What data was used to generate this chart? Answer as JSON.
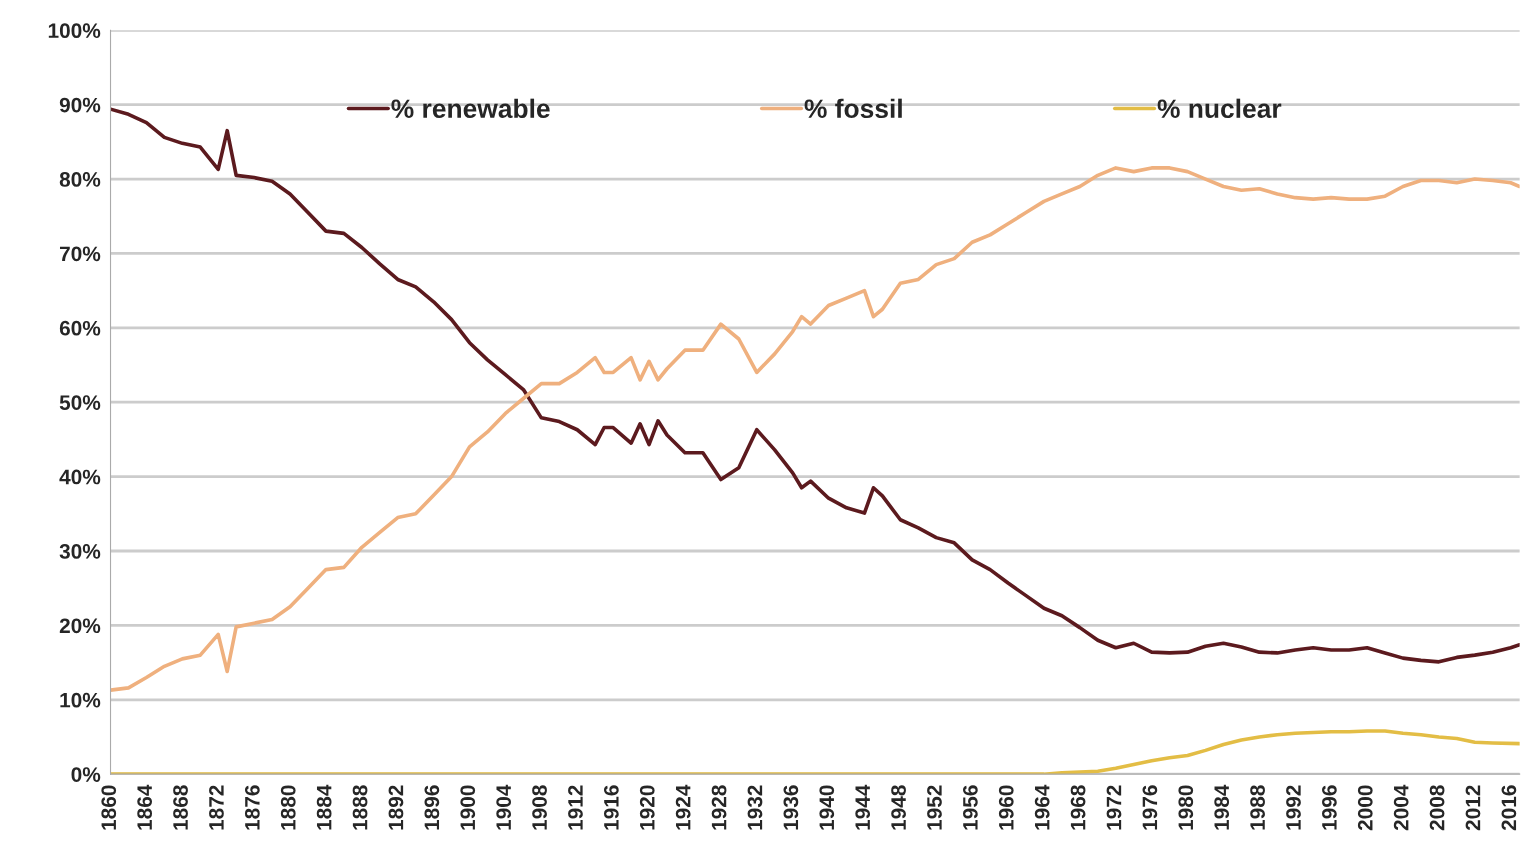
{
  "chart_data": {
    "type": "line",
    "xlim": [
      1860,
      2017
    ],
    "xticks": [
      1860,
      1864,
      1868,
      1872,
      1876,
      1880,
      1884,
      1888,
      1892,
      1896,
      1900,
      1904,
      1908,
      1912,
      1916,
      1920,
      1924,
      1928,
      1932,
      1936,
      1940,
      1944,
      1948,
      1952,
      1956,
      1960,
      1964,
      1968,
      1972,
      1976,
      1980,
      1984,
      1988,
      1992,
      1996,
      2000,
      2004,
      2008,
      2012,
      2016
    ],
    "ylim": [
      0,
      100
    ],
    "yticks": [
      {
        "value": 0,
        "label": "0%"
      },
      {
        "value": 10,
        "label": "10%"
      },
      {
        "value": 20,
        "label": "20%"
      },
      {
        "value": 30,
        "label": "30%"
      },
      {
        "value": 40,
        "label": "40%"
      },
      {
        "value": 50,
        "label": "50%"
      },
      {
        "value": 60,
        "label": "60%"
      },
      {
        "value": 70,
        "label": "70%"
      },
      {
        "value": 80,
        "label": "80%"
      },
      {
        "value": 90,
        "label": "90%"
      },
      {
        "value": 100,
        "label": "100%"
      }
    ],
    "grid": "y",
    "legend": "top",
    "marker": "none",
    "line_style": "solid",
    "series": [
      {
        "name": "% renewable",
        "color": "#5c1a1e",
        "x": [
          1860,
          1862,
          1864,
          1866,
          1868,
          1870,
          1872,
          1873,
          1874,
          1876,
          1878,
          1880,
          1882,
          1884,
          1886,
          1888,
          1890,
          1892,
          1894,
          1896,
          1898,
          1900,
          1902,
          1904,
          1906,
          1908,
          1910,
          1912,
          1914,
          1915,
          1916,
          1918,
          1919,
          1920,
          1921,
          1922,
          1924,
          1926,
          1928,
          1930,
          1932,
          1934,
          1936,
          1937,
          1938,
          1940,
          1942,
          1944,
          1945,
          1946,
          1948,
          1950,
          1952,
          1954,
          1956,
          1958,
          1960,
          1962,
          1964,
          1966,
          1968,
          1970,
          1972,
          1974,
          1976,
          1978,
          1980,
          1982,
          1984,
          1986,
          1988,
          1990,
          1992,
          1994,
          1996,
          1998,
          2000,
          2002,
          2004,
          2006,
          2008,
          2010,
          2012,
          2014,
          2016,
          2017
        ],
        "values": [
          89.4,
          88.7,
          87.6,
          85.6,
          84.8,
          84.3,
          81.3,
          86.5,
          80.5,
          80.2,
          79.7,
          78,
          75.5,
          73,
          72.7,
          70.8,
          68.6,
          66.5,
          65.5,
          63.5,
          61.1,
          58,
          55.7,
          53.7,
          51.7,
          47.9,
          47.4,
          46.3,
          44.3,
          46.6,
          46.6,
          44.5,
          47.1,
          44.3,
          47.5,
          45.6,
          43.2,
          43.2,
          39.6,
          41.2,
          46.3,
          43.6,
          40.5,
          38.5,
          39.4,
          37.1,
          35.8,
          35.1,
          38.5,
          37.4,
          34.2,
          33.1,
          31.8,
          31.1,
          28.8,
          27.5,
          25.7,
          24,
          22.3,
          21.3,
          19.7,
          18,
          17,
          17.6,
          16.4,
          16.3,
          16.4,
          17.2,
          17.6,
          17.1,
          16.4,
          16.3,
          16.7,
          17,
          16.7,
          16.7,
          17,
          16.3,
          15.6,
          15.3,
          15.1,
          15.7,
          16,
          16.4,
          17,
          17.4
        ]
      },
      {
        "name": "% fossil",
        "color": "#efb07e",
        "x": [
          1860,
          1862,
          1864,
          1866,
          1868,
          1870,
          1872,
          1873,
          1874,
          1876,
          1878,
          1880,
          1882,
          1884,
          1886,
          1888,
          1890,
          1892,
          1894,
          1896,
          1898,
          1900,
          1902,
          1904,
          1906,
          1908,
          1910,
          1912,
          1914,
          1915,
          1916,
          1918,
          1919,
          1920,
          1921,
          1922,
          1924,
          1926,
          1928,
          1930,
          1932,
          1934,
          1936,
          1937,
          1938,
          1940,
          1942,
          1944,
          1945,
          1946,
          1948,
          1950,
          1952,
          1954,
          1956,
          1958,
          1960,
          1962,
          1964,
          1966,
          1968,
          1970,
          1972,
          1974,
          1976,
          1978,
          1980,
          1982,
          1984,
          1986,
          1988,
          1990,
          1992,
          1994,
          1996,
          1998,
          2000,
          2002,
          2004,
          2006,
          2008,
          2010,
          2012,
          2014,
          2016,
          2017
        ],
        "values": [
          11.3,
          11.6,
          13,
          14.5,
          15.5,
          16,
          18.8,
          13.8,
          19.8,
          20.3,
          20.8,
          22.5,
          25,
          27.5,
          27.8,
          30.5,
          32.5,
          34.5,
          35,
          37.5,
          40,
          44,
          46,
          48.5,
          50.5,
          52.5,
          52.5,
          54,
          56,
          54,
          54,
          56,
          53,
          55.5,
          53,
          54.5,
          57,
          57,
          60.5,
          58.5,
          54,
          56.5,
          59.5,
          61.5,
          60.5,
          63,
          64,
          65,
          61.5,
          62.5,
          66,
          66.5,
          68.5,
          69.3,
          71.5,
          72.5,
          74,
          75.5,
          77,
          78,
          79,
          80.5,
          81.5,
          81,
          81.5,
          81.5,
          81,
          80,
          79,
          78.5,
          78.7,
          78,
          77.5,
          77.3,
          77.5,
          77.3,
          77.3,
          77.7,
          79,
          79.8,
          79.8,
          79.5,
          80,
          79.8,
          79.5,
          79
        ]
      },
      {
        "name": "% nuclear",
        "color": "#e3bd45",
        "x": [
          1860,
          1964,
          1966,
          1970,
          1972,
          1974,
          1976,
          1978,
          1980,
          1982,
          1984,
          1986,
          1988,
          1990,
          1992,
          1994,
          1996,
          1998,
          2000,
          2002,
          2004,
          2006,
          2008,
          2010,
          2012,
          2014,
          2017
        ],
        "values": [
          0,
          0,
          0.2,
          0.4,
          0.8,
          1.3,
          1.8,
          2.2,
          2.5,
          3.2,
          4,
          4.6,
          5,
          5.3,
          5.5,
          5.6,
          5.7,
          5.7,
          5.8,
          5.8,
          5.5,
          5.3,
          5,
          4.8,
          4.3,
          4.2,
          4.1
        ]
      }
    ]
  }
}
